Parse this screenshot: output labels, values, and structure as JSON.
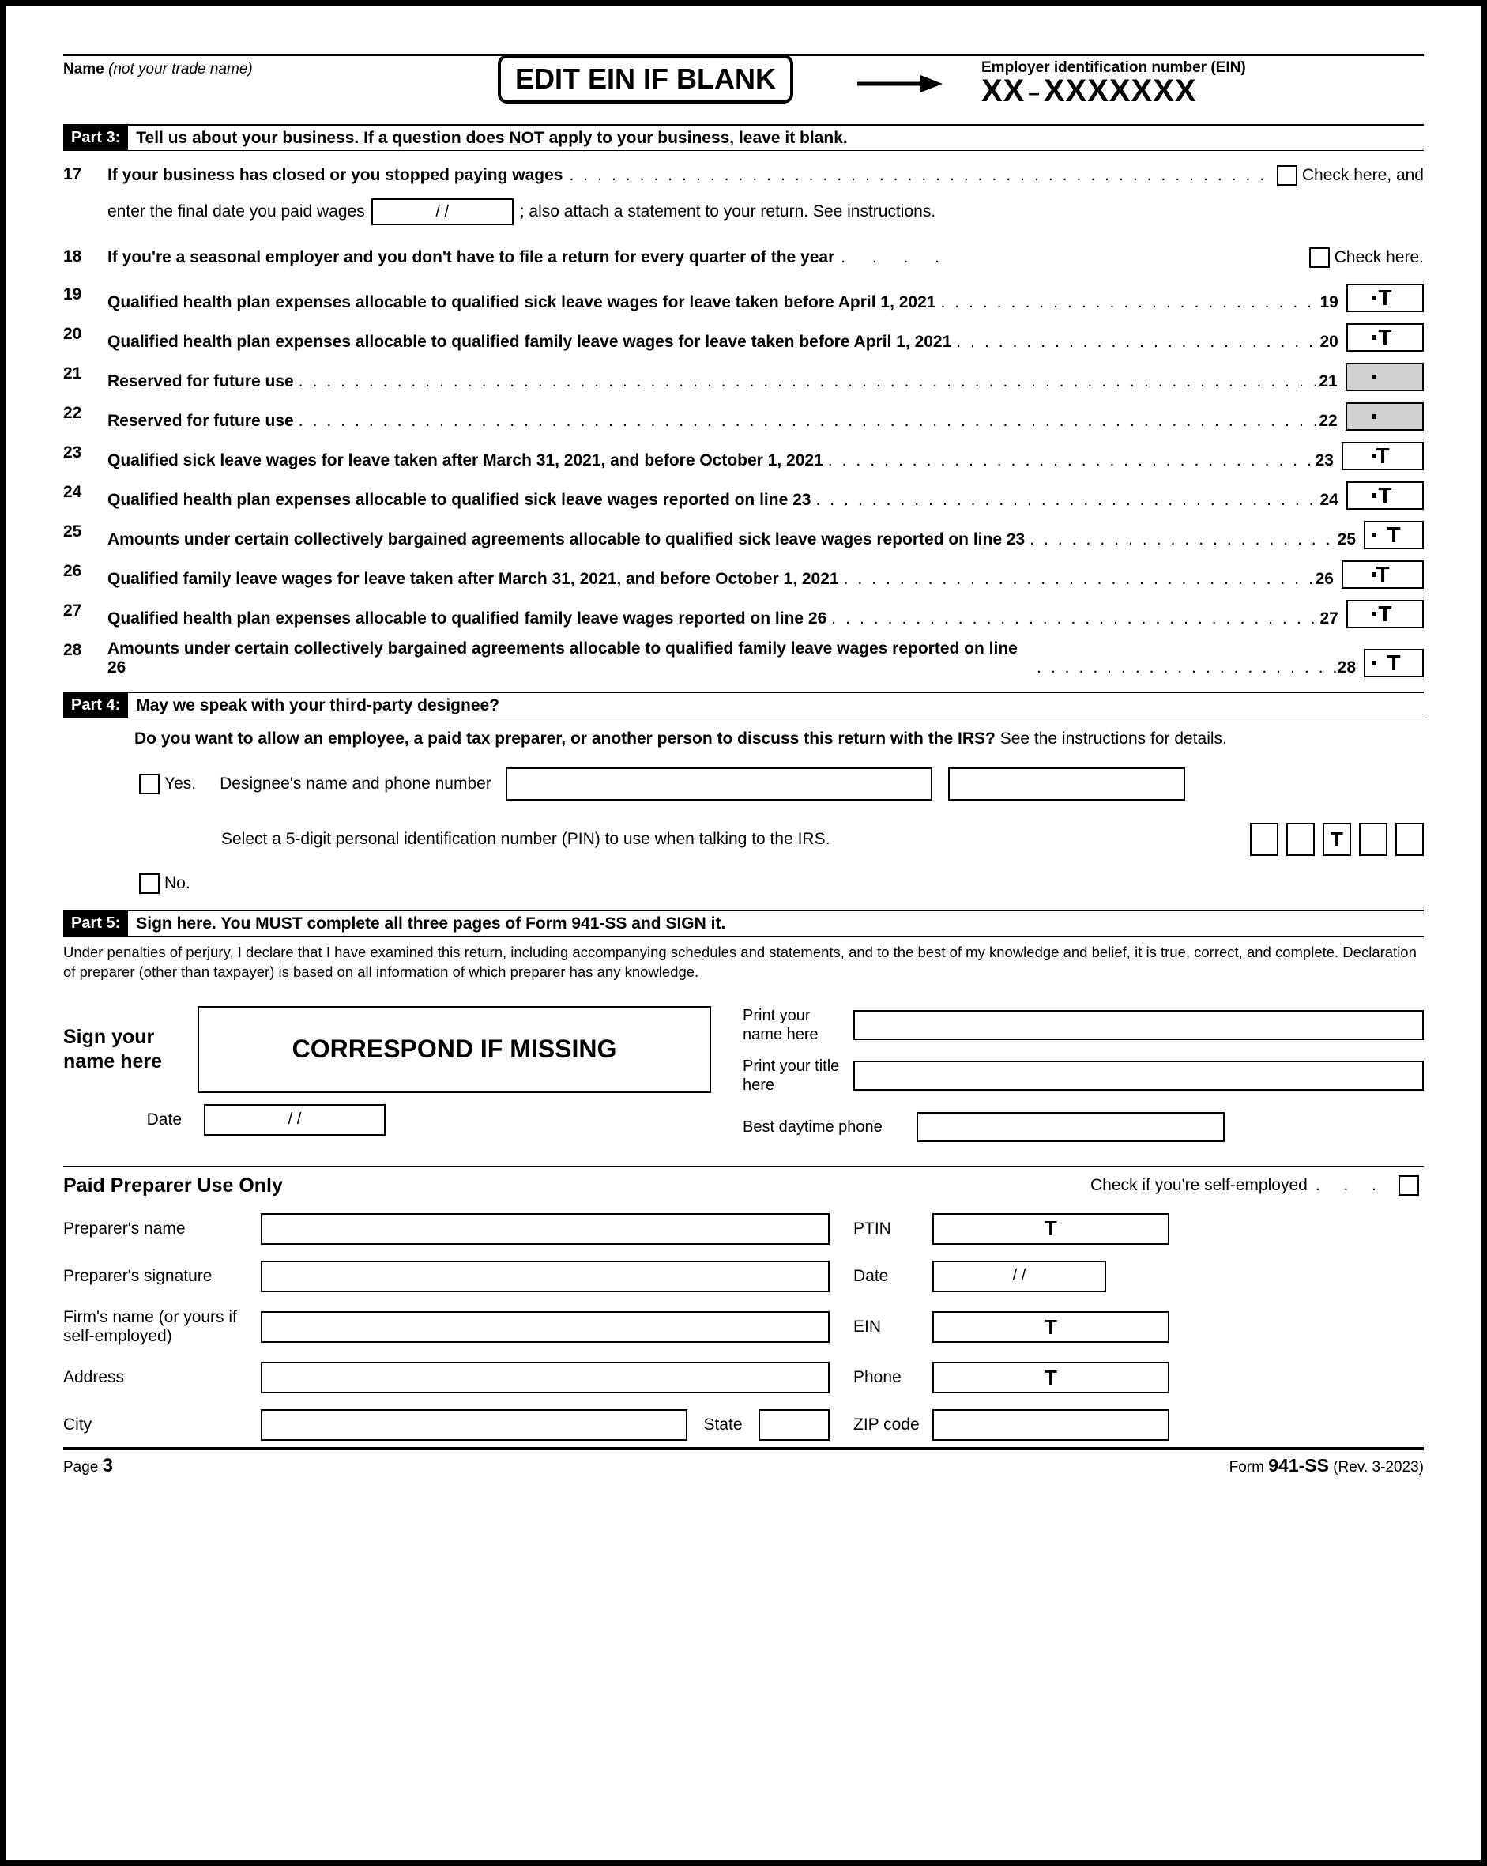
{
  "header": {
    "name_label_bold": "Name",
    "name_label_italic": "(not your trade name)",
    "ein_edit_banner": "EDIT EIN IF BLANK",
    "ein_label": "Employer identification number (EIN)",
    "ein_value_prefix": "XX",
    "ein_value_suffix": "XXXXXXX"
  },
  "part3": {
    "label": "Part 3:",
    "title": "Tell us about your business. If a question does NOT apply to your business, leave it blank.",
    "line17": {
      "num": "17",
      "text": "If your business has closed or you stopped paying wages",
      "check_label": "Check here, and",
      "sub_pre": "enter the final date you paid wages",
      "date_placeholder": "/       /",
      "sub_post": "; also attach a statement to your return. See instructions."
    },
    "line18": {
      "num": "18",
      "text": "If you're a seasonal employer and you don't have to file a return for every quarter of the year",
      "check_label": "Check here."
    },
    "amount_lines": [
      {
        "num": "19",
        "text": "Qualified health plan expenses allocable to qualified sick leave wages for leave taken before April 1, 2021",
        "rnum": "19",
        "val": "T",
        "shaded": false,
        "twoLine": false
      },
      {
        "num": "20",
        "text": "Qualified health plan expenses allocable to qualified family leave wages for leave taken before April 1, 2021",
        "rnum": "20",
        "val": "T",
        "shaded": false,
        "twoLine": false
      },
      {
        "num": "21",
        "text": "Reserved for future use",
        "rnum": "21",
        "val": "",
        "shaded": true,
        "twoLine": false
      },
      {
        "num": "22",
        "text": "Reserved for future use",
        "rnum": "22",
        "val": "",
        "shaded": true,
        "twoLine": false
      },
      {
        "num": "23",
        "text": "Qualified sick leave wages for leave taken after March 31, 2021, and before October 1, 2021",
        "rnum": "23",
        "val": "T",
        "shaded": false,
        "twoLine": false
      },
      {
        "num": "24",
        "text": "Qualified health plan expenses allocable to qualified sick leave wages reported on line 23",
        "rnum": "24",
        "val": "T",
        "shaded": false,
        "twoLine": false
      },
      {
        "num": "25",
        "text": "Amounts under certain collectively bargained agreements allocable to qualified sick leave wages reported on line 23",
        "rnum": "25",
        "val": "T",
        "shaded": false,
        "twoLine": true
      },
      {
        "num": "26",
        "text": "Qualified family leave wages for leave taken after March 31, 2021, and before October 1, 2021",
        "rnum": "26",
        "val": "T",
        "shaded": false,
        "twoLine": false
      },
      {
        "num": "27",
        "text": "Qualified health plan expenses allocable to qualified family leave wages reported on line 26",
        "rnum": "27",
        "val": "T",
        "shaded": false,
        "twoLine": false
      },
      {
        "num": "28",
        "text": "Amounts under certain collectively bargained agreements allocable to qualified family leave wages reported on line 26",
        "rnum": "28",
        "val": "T",
        "shaded": false,
        "twoLine": true
      }
    ]
  },
  "part4": {
    "label": "Part 4:",
    "title": "May we speak with your third-party designee?",
    "intro_bold": "Do you want to allow an employee, a paid tax preparer, or another person to discuss this return with the IRS?",
    "intro_tail": " See the instructions for details.",
    "yes_label": "Yes.",
    "designee_label": "Designee's name and phone number",
    "pin_label": "Select a 5-digit personal identification number (PIN) to use when talking to the IRS.",
    "pin_values": [
      "",
      "",
      "T",
      "",
      ""
    ],
    "no_label": "No."
  },
  "part5": {
    "label": "Part 5:",
    "title": "Sign here. You MUST complete all three pages of Form 941-SS and SIGN it.",
    "perjury": "Under penalties of perjury, I declare that I have examined this return, including accompanying schedules and statements, and to the best of my knowledge and belief, it is true, correct, and complete. Declaration of preparer (other than taxpayer) is based on all information of which preparer has any knowledge.",
    "sign_label": "Sign your name here",
    "sign_box_text": "CORRESPOND IF MISSING",
    "date_label": "Date",
    "date_placeholder": "/       /",
    "print_name_label": "Print your name here",
    "print_title_label": "Print your title here",
    "phone_label": "Best daytime phone"
  },
  "preparer": {
    "title": "Paid Preparer Use Only",
    "self_employed_label": "Check if you're self-employed",
    "rows": {
      "name": "Preparer's name",
      "signature": "Preparer's signature",
      "firm": "Firm's name (or yours if self-employed)",
      "address": "Address",
      "city": "City",
      "state": "State",
      "ptin": "PTIN",
      "date": "Date",
      "date_placeholder": "/       /",
      "ein": "EIN",
      "phone": "Phone",
      "zip": "ZIP code"
    },
    "ptin_val": "T",
    "ein_val": "T",
    "phone_val": "T"
  },
  "footer": {
    "page_label": "Page",
    "page_num": "3",
    "form_label_pre": "Form",
    "form_number": "941-SS",
    "form_rev": "(Rev. 3-2023)"
  },
  "dots": "................................................................................"
}
